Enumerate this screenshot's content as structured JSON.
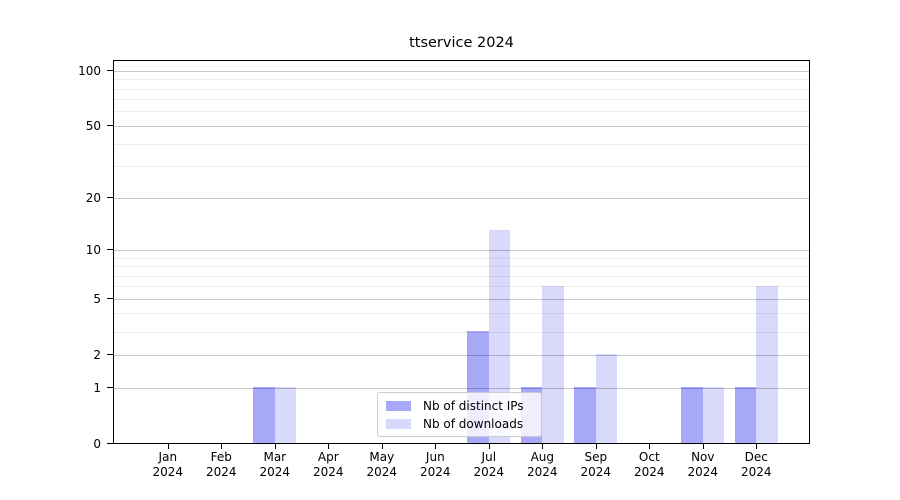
{
  "chart_data": {
    "type": "bar",
    "title": "ttservice 2024",
    "categories": [
      "Jan",
      "Feb",
      "Mar",
      "Apr",
      "May",
      "Jun",
      "Jul",
      "Aug",
      "Sep",
      "Oct",
      "Nov",
      "Dec"
    ],
    "year_label": "2024",
    "series": [
      {
        "name": "Nb of distinct IPs",
        "color": "rgba(0,0,238,0.34)",
        "solid_color": "#a8a8f3",
        "values": [
          0,
          0,
          1,
          0,
          0,
          0,
          3,
          1,
          1,
          0,
          1,
          1
        ]
      },
      {
        "name": "Nb of downloads",
        "color": "rgba(0,0,238,0.15)",
        "solid_color": "#dadaf9",
        "values": [
          0,
          0,
          1,
          0,
          0,
          0,
          13,
          6,
          2,
          0,
          1,
          6
        ]
      }
    ],
    "y_ticks": [
      0,
      1,
      2,
      5,
      10,
      20,
      50,
      100
    ],
    "y_minor_ticks": [
      3,
      4,
      6,
      7,
      8,
      9,
      30,
      40,
      60,
      70,
      80,
      90
    ],
    "scale": "log1p",
    "ylim": [
      0,
      114
    ],
    "grid": true,
    "legend_position": "lower center",
    "colors": {
      "axis": "#000000",
      "grid_major": "#c6c6c6",
      "grid_minor": "#ededed",
      "legend_border": "#cccccc",
      "background": "#ffffff"
    }
  }
}
